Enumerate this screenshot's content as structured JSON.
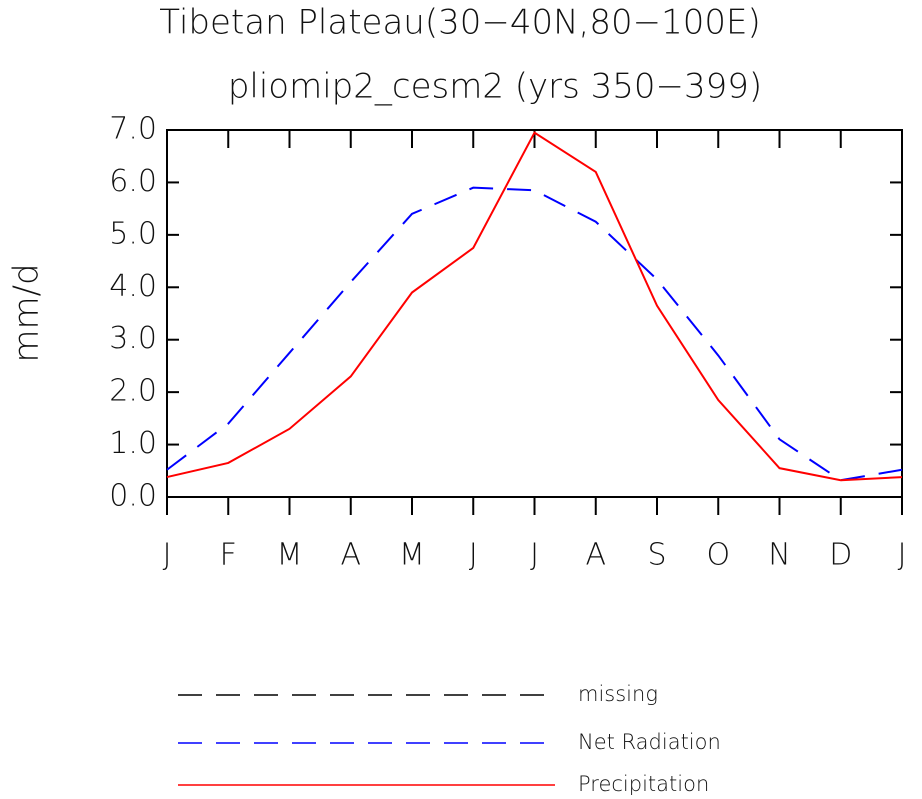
{
  "chart_data": {
    "type": "line",
    "title": "Tibetan Plateau(30−40N,80−100E)",
    "subtitle": "pliomip2_cesm2 (yrs 350−399)",
    "y_label": "mm/d",
    "categories": [
      "J",
      "F",
      "M",
      "A",
      "M",
      "J",
      "J",
      "A",
      "S",
      "O",
      "N",
      "D",
      "J"
    ],
    "series": [
      {
        "name": "missing",
        "color": "#000000",
        "dash": true,
        "values": [
          null,
          null,
          null,
          null,
          null,
          null,
          null,
          null,
          null,
          null,
          null,
          null,
          null
        ]
      },
      {
        "name": "Net Radiation",
        "color": "#0000ff",
        "dash": true,
        "values": [
          0.52,
          1.4,
          2.75,
          4.1,
          5.4,
          5.9,
          5.85,
          5.25,
          4.15,
          2.7,
          1.1,
          0.32,
          0.52
        ]
      },
      {
        "name": "Precipitation",
        "color": "#ff0000",
        "dash": false,
        "values": [
          0.38,
          0.65,
          1.3,
          2.3,
          3.9,
          4.75,
          6.95,
          6.2,
          3.65,
          1.85,
          0.55,
          0.32,
          0.38
        ]
      }
    ],
    "ylim": [
      0,
      7
    ],
    "yticks": [
      {
        "value": 0,
        "label": "0.0"
      },
      {
        "value": 1,
        "label": "1.0"
      },
      {
        "value": 2,
        "label": "2.0"
      },
      {
        "value": 3,
        "label": "3.0"
      },
      {
        "value": 4,
        "label": "4.0"
      },
      {
        "value": 5,
        "label": "5.0"
      },
      {
        "value": 6,
        "label": "6.0"
      },
      {
        "value": 7,
        "label": "7.0"
      }
    ]
  }
}
